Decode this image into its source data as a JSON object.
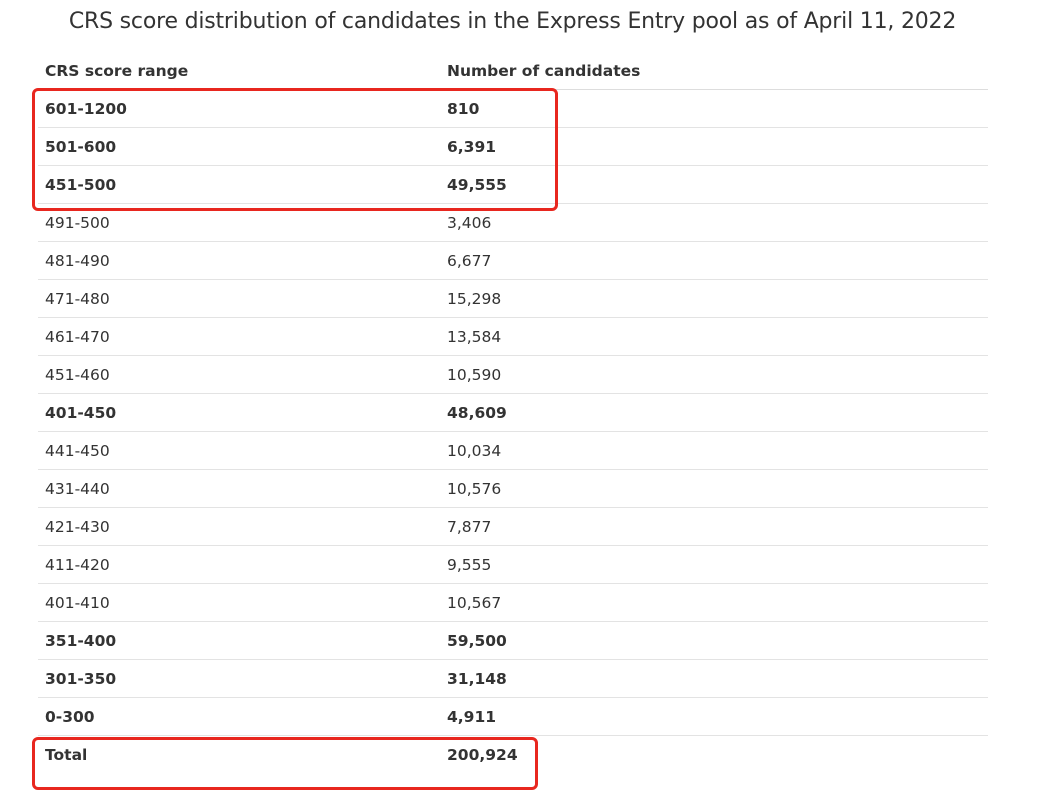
{
  "title": "CRS score distribution of candidates in the Express Entry pool as of April 11, 2022",
  "table": {
    "headers": {
      "range": "CRS score range",
      "count": "Number of candidates"
    },
    "rows": [
      {
        "range": "601-1200",
        "count": "810",
        "bold": true
      },
      {
        "range": "501-600",
        "count": "6,391",
        "bold": true
      },
      {
        "range": "451-500",
        "count": "49,555",
        "bold": true
      },
      {
        "range": "491-500",
        "count": "3,406",
        "bold": false
      },
      {
        "range": "481-490",
        "count": "6,677",
        "bold": false
      },
      {
        "range": "471-480",
        "count": "15,298",
        "bold": false
      },
      {
        "range": "461-470",
        "count": "13,584",
        "bold": false
      },
      {
        "range": "451-460",
        "count": "10,590",
        "bold": false
      },
      {
        "range": "401-450",
        "count": "48,609",
        "bold": true
      },
      {
        "range": "441-450",
        "count": "10,034",
        "bold": false
      },
      {
        "range": "431-440",
        "count": "10,576",
        "bold": false
      },
      {
        "range": "421-430",
        "count": "7,877",
        "bold": false
      },
      {
        "range": "411-420",
        "count": "9,555",
        "bold": false
      },
      {
        "range": "401-410",
        "count": "10,567",
        "bold": false
      },
      {
        "range": "351-400",
        "count": "59,500",
        "bold": true
      },
      {
        "range": "301-350",
        "count": "31,148",
        "bold": true
      },
      {
        "range": "0-300",
        "count": "4,911",
        "bold": true
      },
      {
        "range": "Total",
        "count": "200,924",
        "bold": true
      }
    ]
  },
  "colors": {
    "highlight": "#e8271f",
    "text": "#333333",
    "divider": "#e3e3e3"
  }
}
